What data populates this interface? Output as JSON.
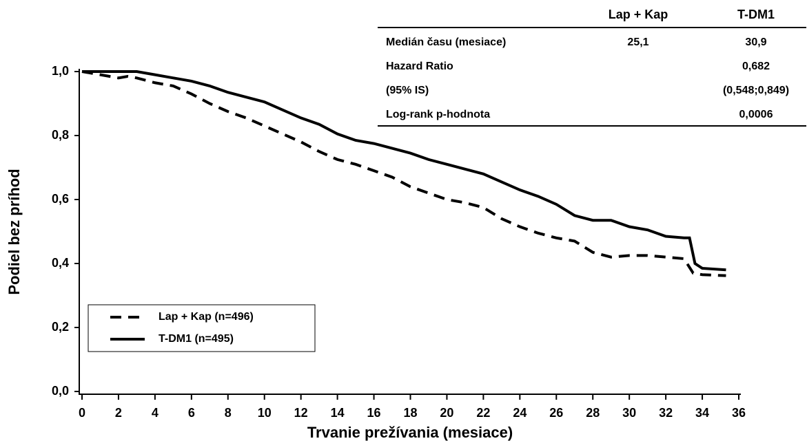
{
  "chart_data": {
    "type": "line",
    "xlabel": "Trvanie prežívania (mesiace)",
    "ylabel": "Podiel bez príhod",
    "xlim": [
      0,
      36
    ],
    "ylim": [
      0,
      1
    ],
    "xticks": [
      0,
      2,
      4,
      6,
      8,
      10,
      12,
      14,
      16,
      18,
      20,
      22,
      24,
      26,
      28,
      30,
      32,
      34,
      36
    ],
    "yticks": [
      {
        "value": 0,
        "label": "0,0"
      },
      {
        "value": 0.2,
        "label": "0,2"
      },
      {
        "value": 0.4,
        "label": "0,4"
      },
      {
        "value": 0.6,
        "label": "0,6"
      },
      {
        "value": 0.8,
        "label": "0,8"
      },
      {
        "value": 1,
        "label": "1,0"
      }
    ],
    "legend": "lower left",
    "series": [
      {
        "name": "Lap + Kap (n=496)",
        "color": "#000000",
        "dash": true,
        "x": [
          0,
          1,
          2,
          2.5,
          3,
          4,
          5,
          6,
          7,
          8,
          9,
          10,
          11,
          12,
          13,
          14,
          15,
          16,
          17,
          18,
          19,
          20,
          21,
          22,
          23,
          24,
          25,
          26,
          27,
          28,
          29,
          30,
          31,
          32,
          33,
          33.5,
          34,
          35.3
        ],
        "values": [
          1.0,
          0.99,
          0.98,
          0.985,
          0.98,
          0.965,
          0.955,
          0.93,
          0.9,
          0.875,
          0.855,
          0.83,
          0.805,
          0.78,
          0.75,
          0.725,
          0.71,
          0.69,
          0.67,
          0.64,
          0.62,
          0.6,
          0.59,
          0.575,
          0.54,
          0.515,
          0.495,
          0.48,
          0.47,
          0.435,
          0.42,
          0.425,
          0.425,
          0.42,
          0.415,
          0.37,
          0.365,
          0.362
        ]
      },
      {
        "name": "T-DM1 (n=495)",
        "color": "#000000",
        "dash": false,
        "x": [
          0,
          3,
          4,
          5,
          6,
          7,
          8,
          9,
          10,
          11,
          12,
          13,
          14,
          15,
          16,
          17,
          18,
          19,
          20,
          21,
          22,
          23,
          24,
          25,
          26,
          27,
          28,
          29,
          30,
          31,
          32,
          33,
          33.3,
          33.6,
          34,
          35.3
        ],
        "values": [
          1.0,
          1.0,
          0.99,
          0.98,
          0.97,
          0.955,
          0.935,
          0.92,
          0.905,
          0.88,
          0.855,
          0.835,
          0.805,
          0.785,
          0.775,
          0.76,
          0.745,
          0.725,
          0.71,
          0.695,
          0.68,
          0.655,
          0.63,
          0.61,
          0.585,
          0.55,
          0.535,
          0.535,
          0.515,
          0.505,
          0.485,
          0.48,
          0.48,
          0.4,
          0.385,
          0.38
        ]
      }
    ]
  },
  "table": {
    "headers": [
      "Lap + Kap",
      "T-DM1"
    ],
    "rows": [
      {
        "label": "Medián času (mesiace)",
        "lap": "25,1",
        "tdm1": "30,9"
      },
      {
        "label": "Hazard Ratio",
        "tdm1": "0,682"
      },
      {
        "label": "(95% IS)",
        "tdm1": "(0,548;0,849)"
      },
      {
        "label": "Log-rank p-hodnota",
        "tdm1": "0,0006"
      }
    ]
  }
}
